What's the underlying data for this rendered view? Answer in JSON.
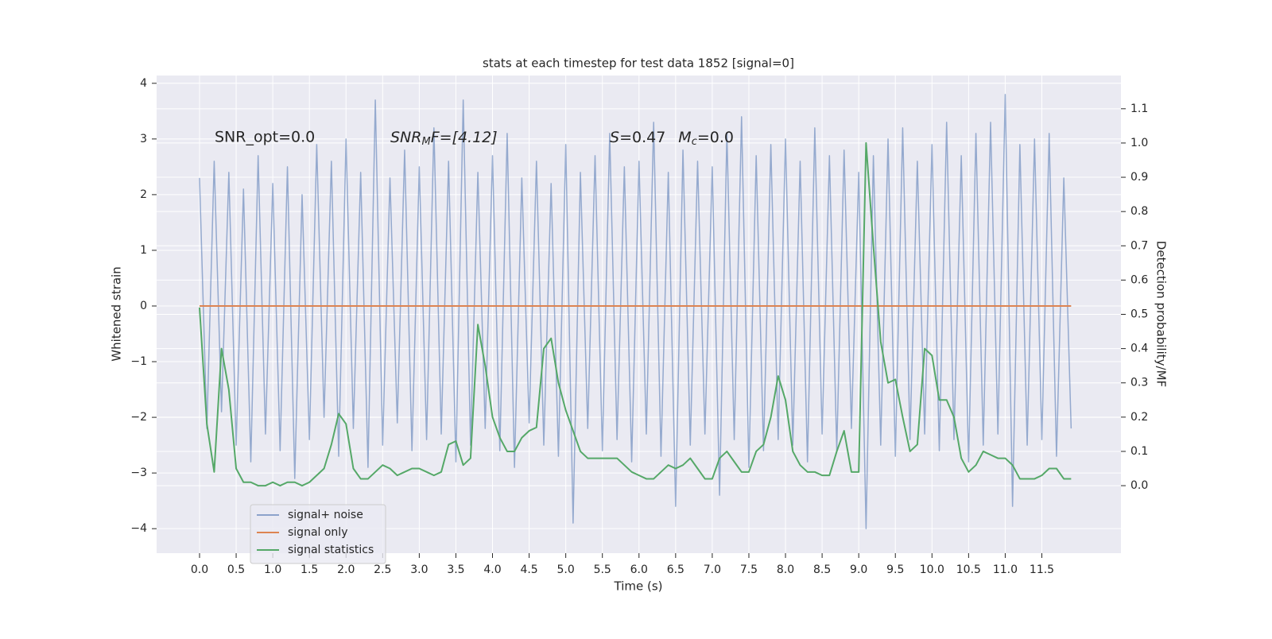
{
  "chart_data": {
    "type": "line",
    "title": "stats at each timestep for test data 1852 [signal=0]",
    "xlabel": "Time (s)",
    "ylabel": "Whitened strain",
    "y2label": "Detection probability/MF",
    "annotations": [
      "SNR_opt=0.0",
      [
        "SNR",
        "M",
        "F=[4.12]"
      ],
      [
        "S",
        "=0.47",
        "M",
        "c",
        "=0.0"
      ]
    ],
    "legend": "lower left",
    "grid": true,
    "xlim": [
      -0.586,
      12.58
    ],
    "ylim": [
      -4.44,
      4.14
    ],
    "y2lim": [
      -0.197,
      1.197
    ],
    "xticks": [
      {
        "value": 0,
        "label": "0.0"
      },
      0.5,
      {
        "value": 1,
        "label": "1.0"
      },
      1.5,
      {
        "value": 2,
        "label": "2.0"
      },
      2.5,
      {
        "value": 3,
        "label": "3.0"
      },
      3.5,
      {
        "value": 4,
        "label": "4.0"
      },
      4.5,
      {
        "value": 5,
        "label": "5.0"
      },
      5.5,
      {
        "value": 6,
        "label": "6.0"
      },
      6.5,
      {
        "value": 7,
        "label": "7.0"
      },
      7.5,
      {
        "value": 8,
        "label": "8.0"
      },
      8.5,
      {
        "value": 9,
        "label": "9.0"
      },
      9.5,
      {
        "value": 10,
        "label": "10.0"
      },
      10.5,
      {
        "value": 11,
        "label": "11.0"
      },
      11.5
    ],
    "yticks": [
      {
        "value": -4,
        "label": "−4"
      },
      {
        "value": -3,
        "label": "−3"
      },
      {
        "value": -2,
        "label": "−2"
      },
      {
        "value": -1,
        "label": "−1"
      },
      0,
      1,
      2,
      3,
      4
    ],
    "y2ticks": [
      {
        "value": 0,
        "label": "0.0"
      },
      0.1,
      0.2,
      0.3,
      0.4,
      0.5,
      0.6,
      0.7,
      0.8,
      0.9,
      {
        "value": 1,
        "label": "1.0"
      },
      1.1
    ],
    "x": [
      0.0,
      0.1,
      0.2,
      0.3,
      0.4,
      0.5,
      0.6,
      0.7,
      0.8,
      0.9,
      1.0,
      1.1,
      1.2,
      1.3,
      1.4,
      1.5,
      1.6,
      1.7,
      1.8,
      1.9,
      2.0,
      2.1,
      2.2,
      2.3,
      2.4,
      2.5,
      2.6,
      2.7,
      2.8,
      2.9,
      3.0,
      3.1,
      3.2,
      3.3,
      3.4,
      3.5,
      3.6,
      3.7,
      3.8,
      3.9,
      4.0,
      4.1,
      4.2,
      4.3,
      4.4,
      4.5,
      4.6,
      4.7,
      4.8,
      4.9,
      5.0,
      5.1,
      5.2,
      5.3,
      5.4,
      5.5,
      5.6,
      5.7,
      5.8,
      5.9,
      6.0,
      6.1,
      6.2,
      6.3,
      6.4,
      6.5,
      6.6,
      6.7,
      6.8,
      6.9,
      7.0,
      7.1,
      7.2,
      7.3,
      7.4,
      7.5,
      7.6,
      7.7,
      7.8,
      7.9,
      8.0,
      8.1,
      8.2,
      8.3,
      8.4,
      8.5,
      8.6,
      8.7,
      8.8,
      8.9,
      9.0,
      9.1,
      9.2,
      9.3,
      9.4,
      9.5,
      9.6,
      9.7,
      9.8,
      9.9,
      10.0,
      10.1,
      10.2,
      10.3,
      10.4,
      10.5,
      10.6,
      10.7,
      10.8,
      10.9,
      11.0,
      11.1,
      11.2,
      11.3,
      11.4,
      11.5,
      11.6,
      11.7,
      11.8,
      11.9
    ],
    "series": [
      {
        "name": "signal+ noise",
        "color": "#4c72b0",
        "values": [
          2.3,
          -2.2,
          2.6,
          -1.9,
          2.4,
          -2.5,
          2.1,
          -2.8,
          2.7,
          -2.3,
          2.2,
          -2.6,
          2.5,
          -3.1,
          2.0,
          -2.4,
          2.9,
          -2.0,
          2.6,
          -2.7,
          3.0,
          -2.2,
          2.4,
          -2.9,
          3.7,
          -2.5,
          2.3,
          -2.1,
          2.8,
          -2.6,
          2.5,
          -2.4,
          3.2,
          -2.3,
          2.6,
          -2.8,
          3.7,
          -2.5,
          2.4,
          -2.2,
          2.7,
          -2.6,
          3.1,
          -2.9,
          2.3,
          -2.1,
          2.6,
          -2.5,
          2.2,
          -2.7,
          2.9,
          -3.9,
          2.4,
          -2.2,
          2.7,
          -2.6,
          3.1,
          -2.4,
          2.5,
          -2.8,
          2.6,
          -2.3,
          3.3,
          -2.7,
          2.4,
          -3.6,
          2.8,
          -2.5,
          2.6,
          -2.3,
          2.5,
          -3.4,
          3.1,
          -2.4,
          3.4,
          -2.9,
          2.7,
          -2.6,
          2.9,
          -2.4,
          3.0,
          -2.5,
          2.6,
          -2.8,
          3.2,
          -2.3,
          2.7,
          -2.6,
          2.8,
          -2.2,
          2.4,
          -4.0,
          2.7,
          -2.5,
          3.0,
          -2.7,
          3.2,
          -2.4,
          2.6,
          -2.3,
          2.9,
          -2.6,
          3.3,
          -2.4,
          2.7,
          -2.8,
          3.1,
          -2.5,
          3.3,
          -2.3,
          3.8,
          -3.6,
          2.9,
          -2.5,
          3.0,
          -2.4,
          3.1,
          -2.7,
          2.3,
          -2.2
        ]
      },
      {
        "name": "signal only",
        "color": "#dd8452",
        "values": [
          0,
          0,
          0,
          0,
          0,
          0,
          0,
          0,
          0,
          0,
          0,
          0,
          0,
          0,
          0,
          0,
          0,
          0,
          0,
          0,
          0,
          0,
          0,
          0,
          0,
          0,
          0,
          0,
          0,
          0,
          0,
          0,
          0,
          0,
          0,
          0,
          0,
          0,
          0,
          0,
          0,
          0,
          0,
          0,
          0,
          0,
          0,
          0,
          0,
          0,
          0,
          0,
          0,
          0,
          0,
          0,
          0,
          0,
          0,
          0,
          0,
          0,
          0,
          0,
          0,
          0,
          0,
          0,
          0,
          0,
          0,
          0,
          0,
          0,
          0,
          0,
          0,
          0,
          0,
          0,
          0,
          0,
          0,
          0,
          0,
          0,
          0,
          0,
          0,
          0,
          0,
          0,
          0,
          0,
          0,
          0,
          0,
          0,
          0,
          0,
          0,
          0,
          0,
          0,
          0,
          0,
          0,
          0,
          0,
          0,
          0,
          0,
          0,
          0,
          0,
          0,
          0,
          0,
          0,
          0
        ]
      },
      {
        "name": "signal statistics",
        "color": "#55a868",
        "axis": "y2",
        "values": [
          0.52,
          0.18,
          0.04,
          0.4,
          0.28,
          0.05,
          0.01,
          0.01,
          0.0,
          0.0,
          0.01,
          0.0,
          0.01,
          0.01,
          0.0,
          0.01,
          0.03,
          0.05,
          0.12,
          0.21,
          0.18,
          0.05,
          0.02,
          0.02,
          0.04,
          0.06,
          0.05,
          0.03,
          0.04,
          0.05,
          0.05,
          0.04,
          0.03,
          0.04,
          0.12,
          0.13,
          0.06,
          0.08,
          0.47,
          0.35,
          0.2,
          0.14,
          0.1,
          0.1,
          0.14,
          0.16,
          0.17,
          0.4,
          0.43,
          0.3,
          0.22,
          0.16,
          0.1,
          0.08,
          0.08,
          0.08,
          0.08,
          0.08,
          0.06,
          0.04,
          0.03,
          0.02,
          0.02,
          0.04,
          0.06,
          0.05,
          0.06,
          0.08,
          0.05,
          0.02,
          0.02,
          0.08,
          0.1,
          0.07,
          0.04,
          0.04,
          0.1,
          0.12,
          0.2,
          0.32,
          0.25,
          0.1,
          0.06,
          0.04,
          0.04,
          0.03,
          0.03,
          0.1,
          0.16,
          0.04,
          0.04,
          1.0,
          0.7,
          0.42,
          0.3,
          0.31,
          0.2,
          0.1,
          0.12,
          0.4,
          0.38,
          0.25,
          0.25,
          0.2,
          0.08,
          0.04,
          0.06,
          0.1,
          0.09,
          0.08,
          0.08,
          0.06,
          0.02,
          0.02,
          0.02,
          0.03,
          0.05,
          0.05,
          0.02,
          0.02
        ]
      }
    ]
  }
}
